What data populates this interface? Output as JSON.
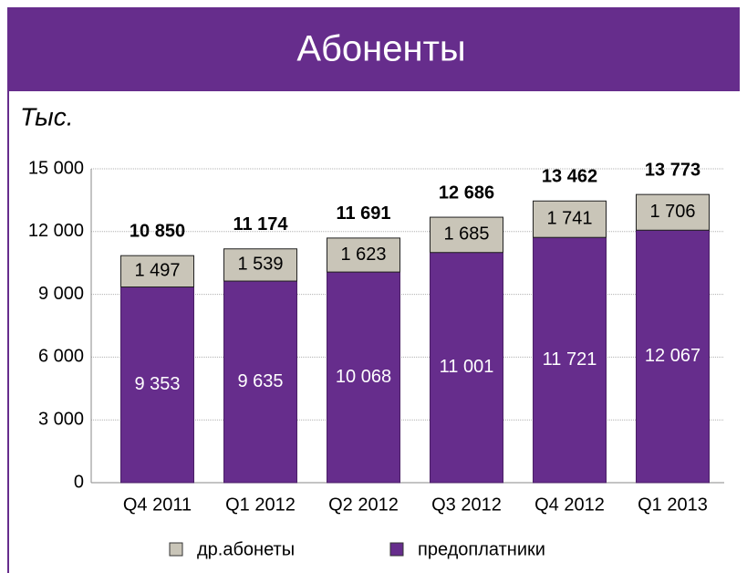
{
  "chart_data": {
    "type": "stacked_bar",
    "title": "Абоненты",
    "unit_label": "Тыс.",
    "categories": [
      "Q4 2011",
      "Q1 2012",
      "Q2 2012",
      "Q3 2012",
      "Q4 2012",
      "Q1 2013"
    ],
    "series": [
      {
        "name": "предоплатники",
        "color": "#662d8c",
        "values": [
          9353,
          9635,
          10068,
          11001,
          11721,
          12067
        ],
        "value_labels": [
          "9 353",
          "9 635",
          "10 068",
          "11 001",
          "11 721",
          "12 067"
        ]
      },
      {
        "name": "др.абонеты",
        "color": "#c9c5b8",
        "values": [
          1497,
          1539,
          1623,
          1685,
          1741,
          1706
        ],
        "value_labels": [
          "1 497",
          "1 539",
          "1 623",
          "1 685",
          "1 741",
          "1 706"
        ]
      }
    ],
    "totals": [
      10850,
      11174,
      11691,
      12686,
      13462,
      13773
    ],
    "total_labels": [
      "10 850",
      "11 174",
      "11 691",
      "12 686",
      "13 462",
      "13 773"
    ],
    "ylim": [
      0,
      15000
    ],
    "yticks": [
      0,
      {
        "value": 3000,
        "label": "3 000"
      },
      {
        "value": 6000,
        "label": "6 000"
      },
      {
        "value": 9000,
        "label": "9 000"
      },
      {
        "value": 12000,
        "label": "12 000"
      },
      {
        "value": 15000,
        "label": "15 000"
      }
    ],
    "grid": true
  }
}
